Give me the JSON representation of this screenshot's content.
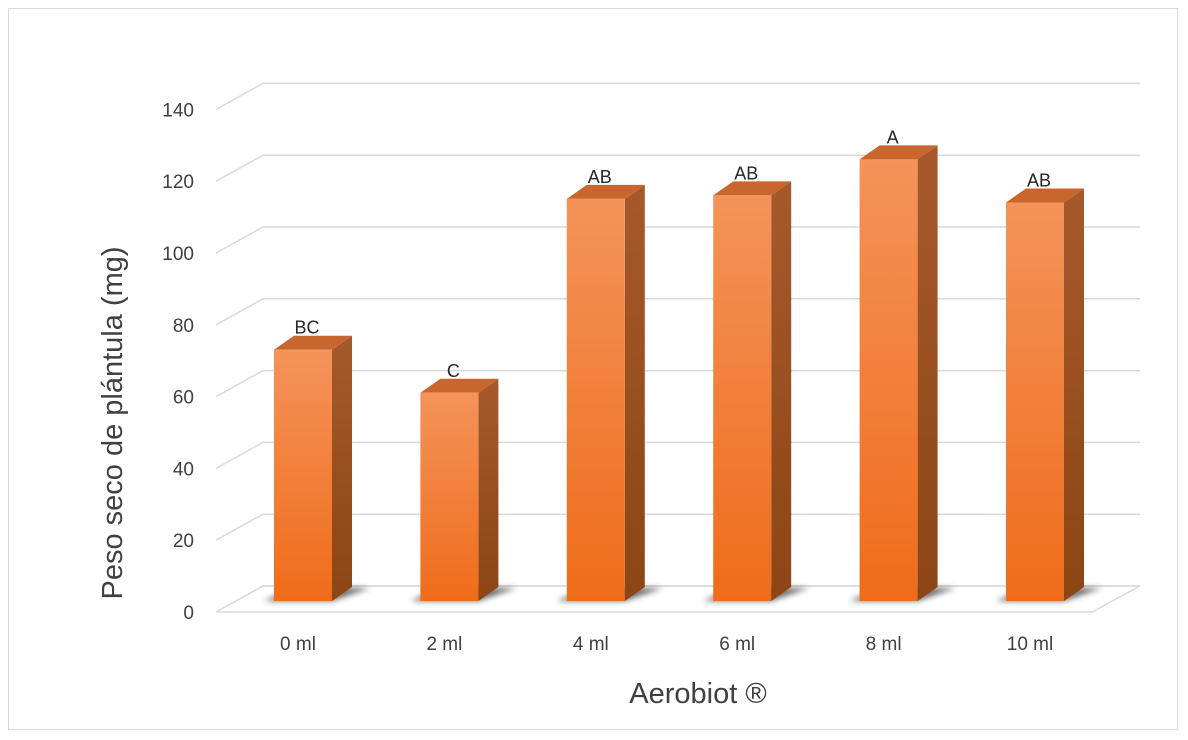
{
  "chart_data": {
    "type": "bar",
    "title": "",
    "xlabel": "Aerobiot ®",
    "ylabel": "Peso seco de plántula (mg)",
    "categories": [
      "0 ml",
      "2 ml",
      "4 ml",
      "6 ml",
      "8 ml",
      "10 ml"
    ],
    "values": [
      70,
      58,
      112,
      113,
      123,
      111
    ],
    "data_labels": [
      "BC",
      "C",
      "AB",
      "AB",
      "A",
      "AB"
    ],
    "y_ticks": [
      "0",
      "20",
      "40",
      "60",
      "80",
      "100",
      "120",
      "140"
    ],
    "ylim": [
      0,
      140
    ],
    "grid": true,
    "legend": "none",
    "style": "3d-column",
    "colors": {
      "bar_front_top": "#f4935a",
      "bar_front_bottom": "#ef6c1a",
      "bar_side": "#a3521f",
      "bar_top": "#c8662e",
      "grid": "#d9d9d9"
    }
  }
}
